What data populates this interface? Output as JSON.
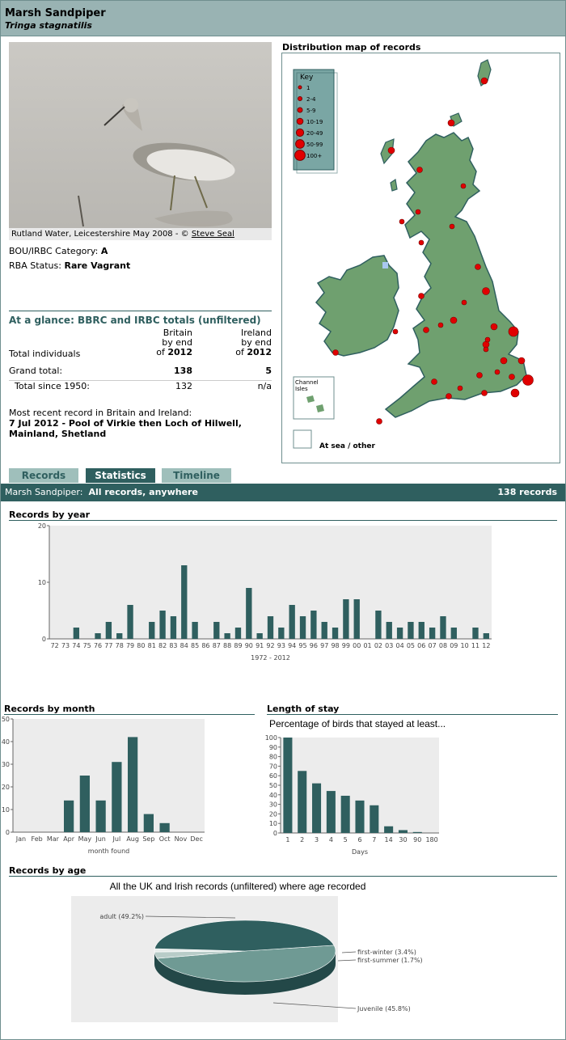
{
  "species": {
    "name": "Marsh Sandpiper",
    "latin": "Tringa stagnatilis"
  },
  "photo": {
    "caption_prefix": "Rutland Water, Leicestershire May 2008 - ©",
    "photographer": "Steve Seal"
  },
  "category": {
    "label": "BOU/IRBC Category:",
    "value": "A"
  },
  "rba": {
    "label": "RBA Status:",
    "value": "Rare Vagrant"
  },
  "glance": {
    "title": "At a glance: BBRC and IRBC totals (unfiltered)",
    "britain_head": [
      "Britain",
      "by end",
      "of"
    ],
    "ireland_head": [
      "Ireland",
      "by end",
      "of"
    ],
    "year": "2012",
    "total_individuals": "Total individuals",
    "grand_total": "Grand total:",
    "grand_britain": "138",
    "grand_ireland": "5",
    "since_label": "Total since 1950:",
    "since_britain": "132",
    "since_ireland": "n/a",
    "recent_label": "Most recent record in Britain and Ireland:",
    "recent_line1": "7 Jul 2012  - Pool of Virkie then Loch of Hilwell,",
    "recent_line2": "Mainland, Shetland"
  },
  "map": {
    "title": "Distribution map of records",
    "key_title": "Key",
    "key": [
      "1",
      "2-4",
      "5-9",
      "10-19",
      "20-49",
      "50-99",
      "100+"
    ],
    "channel_label": [
      "Channel",
      "Isles"
    ],
    "sea_label": "At sea / other",
    "land_color": "#6fa06f",
    "dot_color": "#e00000"
  },
  "tabs": [
    {
      "label": "Records",
      "active": false
    },
    {
      "label": "Statistics",
      "active": true
    },
    {
      "label": "Timeline",
      "active": false
    }
  ],
  "status_bar": {
    "species": "Marsh Sandpiper:",
    "filter": "All records, anywhere",
    "count": "138 records"
  },
  "charts": {
    "accent": "#2f5f5f",
    "year_title": "Records by year",
    "month_title": "Records by month",
    "stay_title": "Length of stay",
    "stay_subtitle": "Percentage of birds that stayed at least...",
    "age_title": "Records by age",
    "age_subtitle": "All the UK and Irish records (unfiltered) where age recorded"
  },
  "chart_data": [
    {
      "type": "bar",
      "title": "Records by year",
      "xlabel": "1972 - 2012",
      "ylim": [
        0,
        20
      ],
      "yticks": [
        0,
        10,
        20
      ],
      "categories": [
        "72",
        "73",
        "74",
        "75",
        "76",
        "77",
        "78",
        "79",
        "80",
        "81",
        "82",
        "83",
        "84",
        "85",
        "86",
        "87",
        "88",
        "89",
        "90",
        "91",
        "92",
        "93",
        "94",
        "95",
        "96",
        "97",
        "98",
        "99",
        "00",
        "01",
        "02",
        "03",
        "04",
        "05",
        "06",
        "07",
        "08",
        "09",
        "10",
        "11",
        "12"
      ],
      "values": [
        0,
        0,
        2,
        0,
        1,
        3,
        1,
        6,
        0,
        3,
        5,
        4,
        13,
        3,
        0,
        3,
        1,
        2,
        9,
        1,
        4,
        2,
        6,
        4,
        5,
        3,
        2,
        7,
        7,
        0,
        5,
        3,
        2,
        3,
        3,
        2,
        4,
        2,
        0,
        2,
        1
      ]
    },
    {
      "type": "bar",
      "title": "Records by month",
      "xlabel": "month found",
      "ylim": [
        0,
        50
      ],
      "yticks": [
        0,
        10,
        20,
        30,
        40,
        50
      ],
      "categories": [
        "Jan",
        "Feb",
        "Mar",
        "Apr",
        "May",
        "Jun",
        "Jul",
        "Aug",
        "Sep",
        "Oct",
        "Nov",
        "Dec"
      ],
      "values": [
        0,
        0,
        0,
        14,
        25,
        14,
        31,
        42,
        8,
        4,
        0,
        0
      ]
    },
    {
      "type": "bar",
      "title": "Length of stay",
      "subtitle": "Percentage of birds that stayed at least...",
      "xlabel": "Days",
      "ylim": [
        0,
        100
      ],
      "yticks": [
        0,
        10,
        20,
        30,
        40,
        50,
        60,
        70,
        80,
        90,
        100
      ],
      "categories": [
        "1",
        "2",
        "3",
        "4",
        "5",
        "6",
        "7",
        "14",
        "30",
        "90",
        "180"
      ],
      "values": [
        100,
        65,
        52,
        44,
        39,
        34,
        29,
        7,
        3,
        1,
        0
      ]
    },
    {
      "type": "pie",
      "title": "Records by age",
      "subtitle": "All the UK and Irish records (unfiltered) where age recorded",
      "slices": [
        {
          "name": "adult",
          "label": "adult (49.2%)",
          "value": 49.2,
          "color": "#6f9a94"
        },
        {
          "name": "first-winter",
          "label": "first-winter (3.4%)",
          "value": 3.4,
          "color": "#b8ccc8"
        },
        {
          "name": "first-summer",
          "label": "first-summer (1.7%)",
          "value": 1.7,
          "color": "#e6ecea"
        },
        {
          "name": "Juvenile",
          "label": "Juvenile (45.8%)",
          "value": 45.8,
          "color": "#2f5f5f"
        }
      ]
    }
  ]
}
